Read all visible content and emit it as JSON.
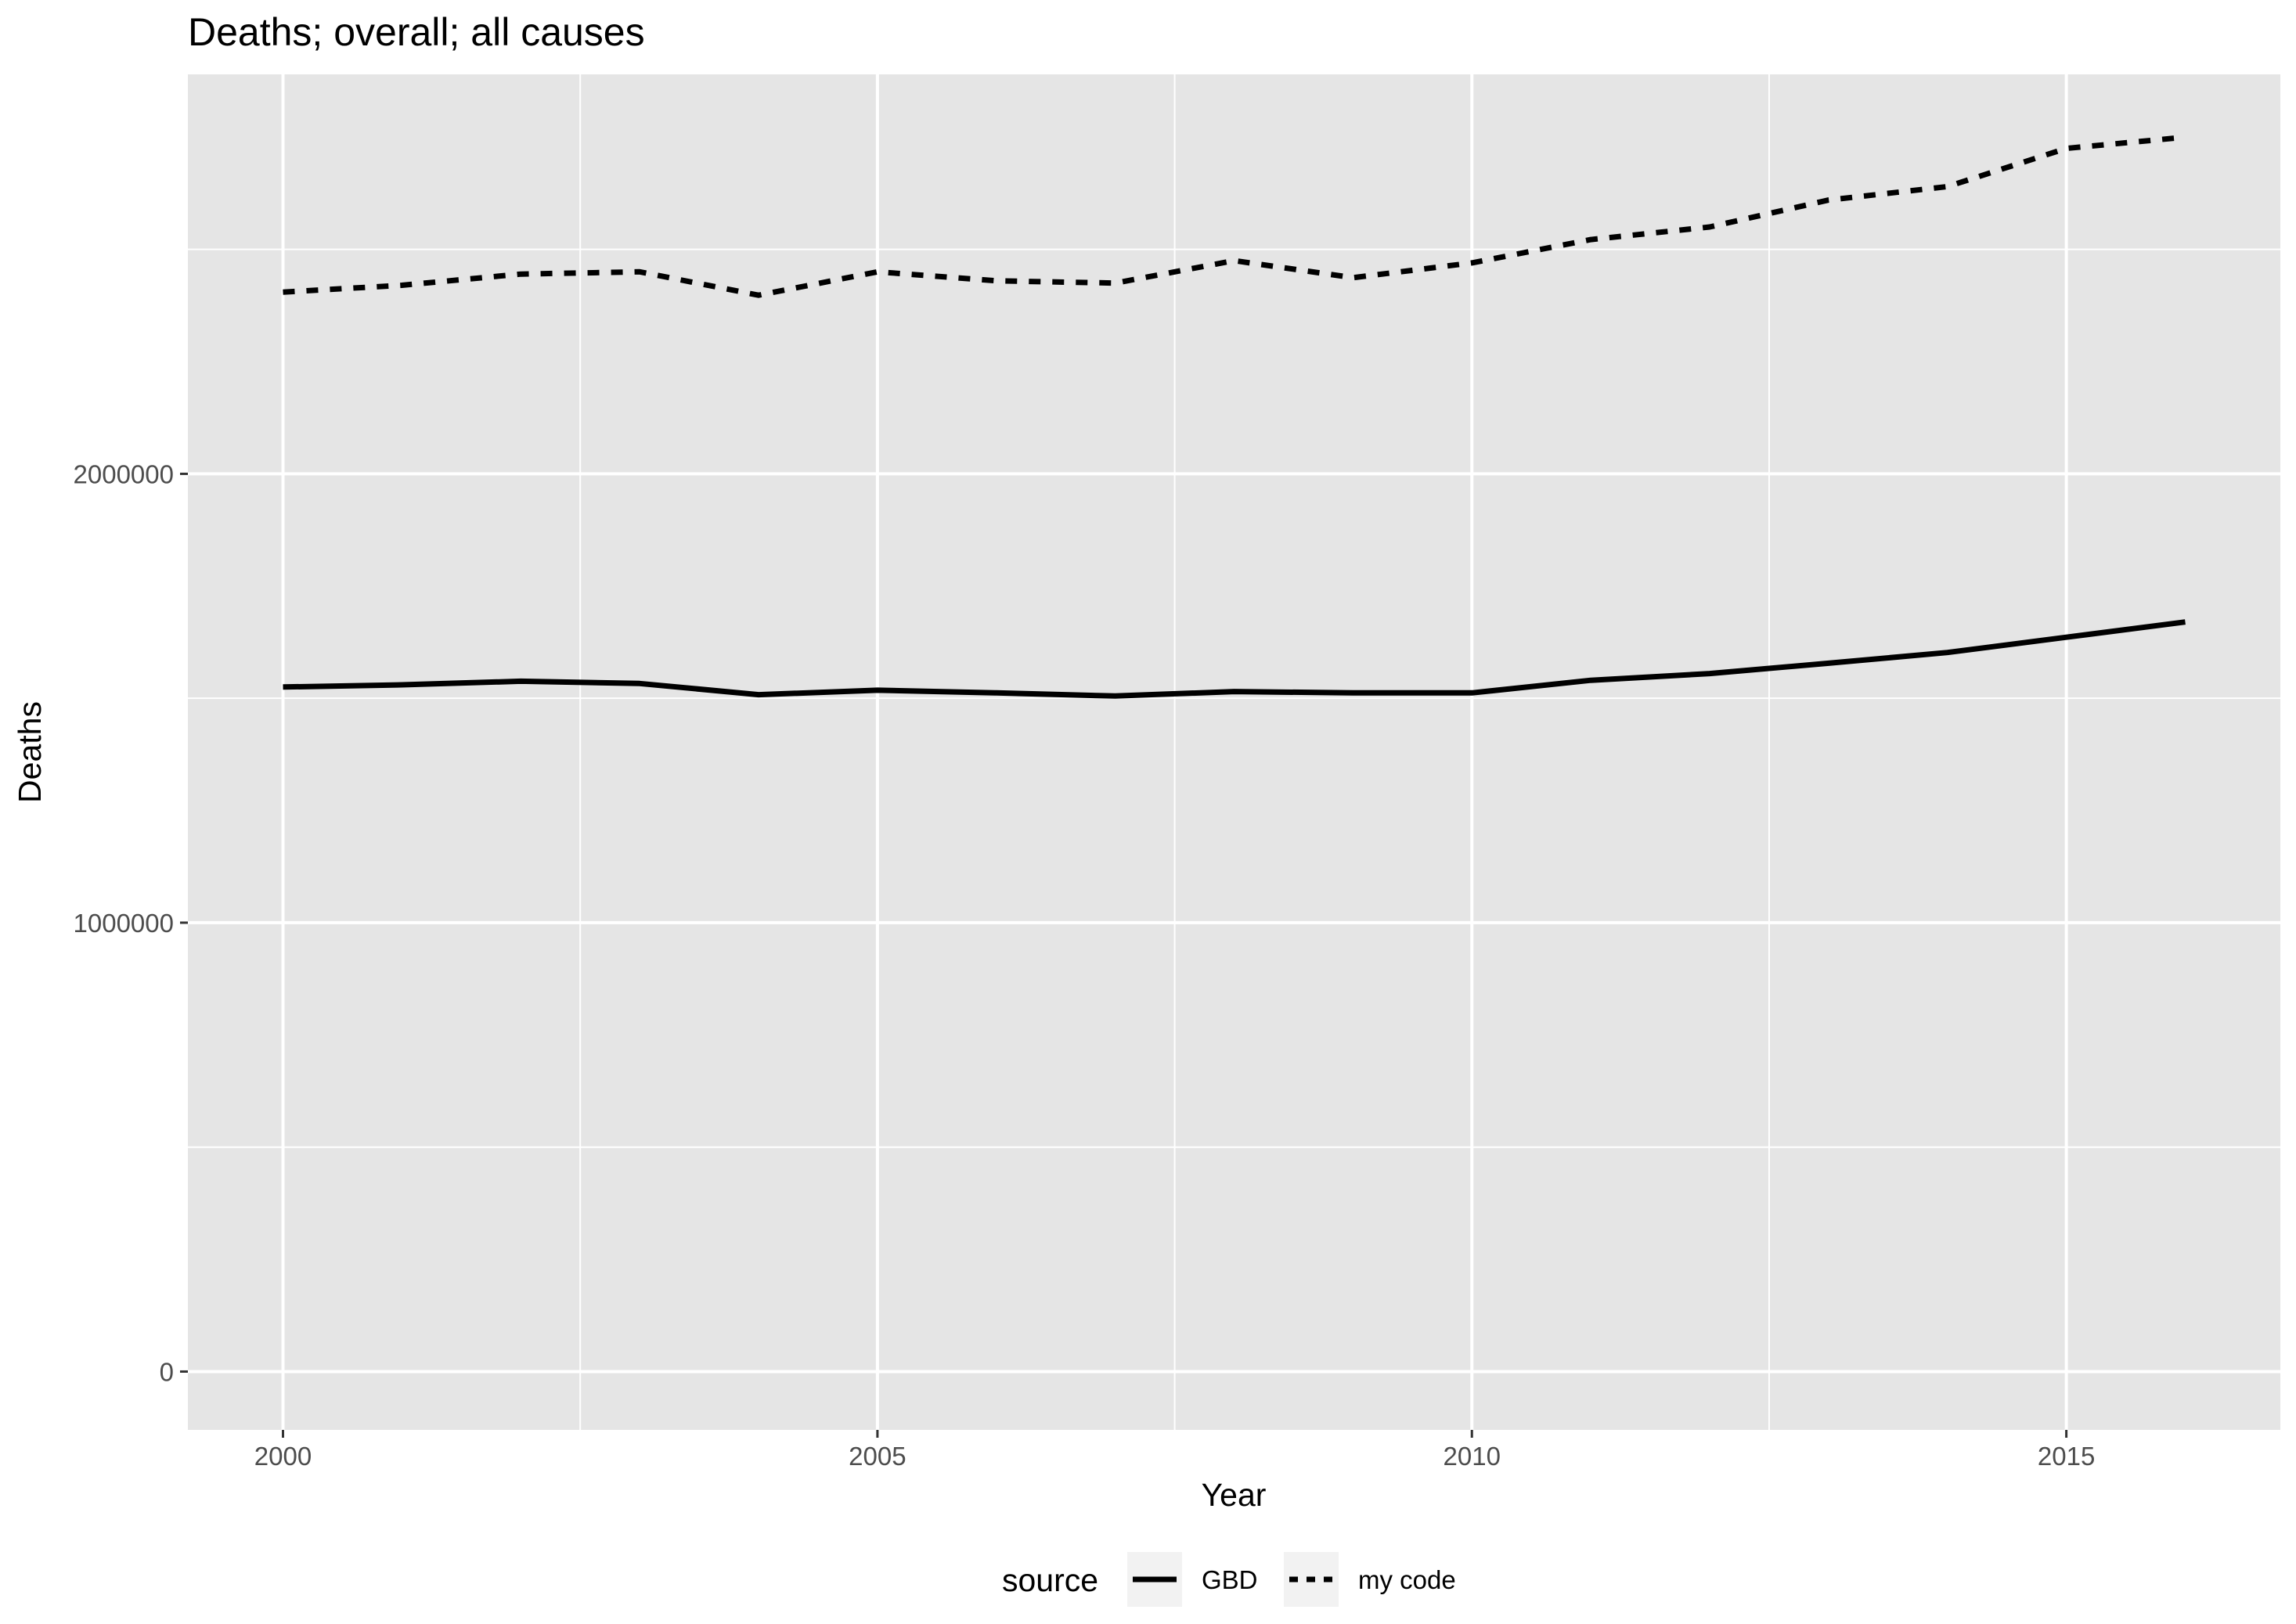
{
  "chart_data": {
    "type": "line",
    "title": "Deaths; overall; all causes",
    "xlabel": "Year",
    "ylabel": "Deaths",
    "x": [
      2000,
      2001,
      2002,
      2003,
      2004,
      2005,
      2006,
      2007,
      2008,
      2009,
      2010,
      2011,
      2012,
      2013,
      2014,
      2015,
      2016
    ],
    "xlim": [
      1999.2,
      2016.8
    ],
    "ylim": [
      -130000,
      2890000
    ],
    "x_ticks": [
      2000,
      2005,
      2010,
      2015
    ],
    "y_ticks": [
      0,
      1000000,
      2000000
    ],
    "x_tick_labels": [
      "2000",
      "2005",
      "2010",
      "2015"
    ],
    "y_tick_labels": [
      "0",
      "1000000",
      "2000000"
    ],
    "grid": true,
    "legend": {
      "title": "source",
      "position": "bottom"
    },
    "series": [
      {
        "name": "GBD",
        "line_style": "solid",
        "color": "#000000",
        "values": [
          1525000,
          1530000,
          1538000,
          1533000,
          1508000,
          1518000,
          1512000,
          1505000,
          1515000,
          1512000,
          1512000,
          1540000,
          1555000,
          1578000,
          1602000,
          1636000,
          1670000
        ]
      },
      {
        "name": "my code",
        "line_style": "dashed",
        "color": "#000000",
        "values": [
          2405000,
          2420000,
          2445000,
          2450000,
          2398000,
          2450000,
          2430000,
          2425000,
          2475000,
          2437000,
          2470000,
          2522000,
          2550000,
          2610000,
          2640000,
          2725000,
          2750000
        ]
      }
    ],
    "panel_color": "#e5e5e5",
    "grid_color": "#ffffff"
  }
}
